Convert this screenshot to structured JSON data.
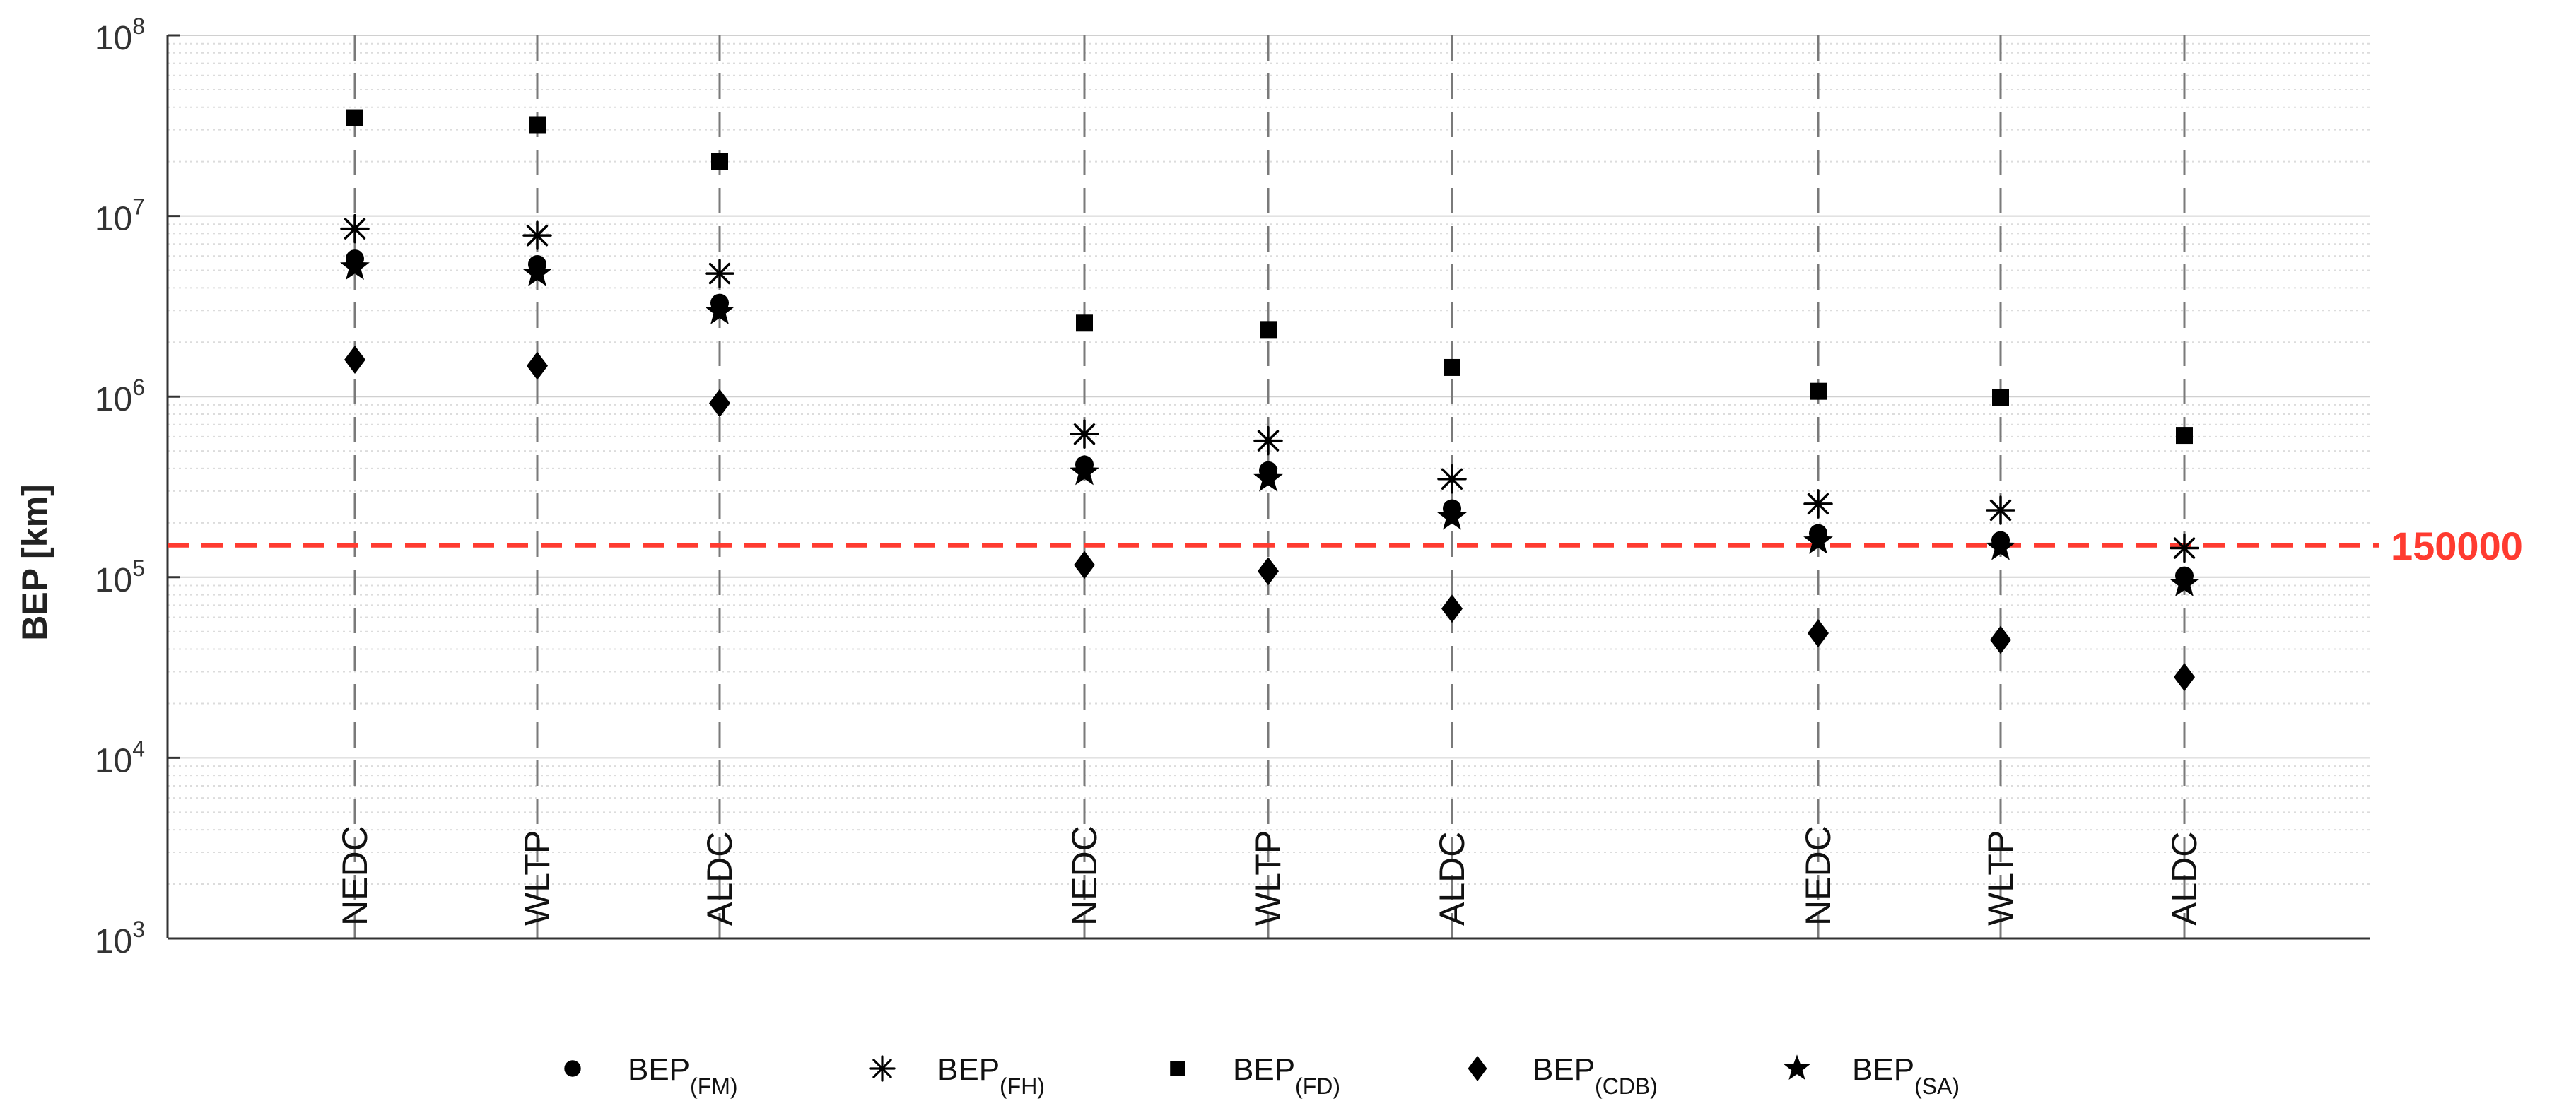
{
  "chart_data": {
    "type": "scatter",
    "y_scale": "log",
    "ylim": [
      1000,
      100000000
    ],
    "ylabel": "BEP [km]",
    "y_ticks": [
      {
        "value": 1000,
        "base": "10",
        "exp": "3"
      },
      {
        "value": 10000,
        "base": "10",
        "exp": "4"
      },
      {
        "value": 100000,
        "base": "10",
        "exp": "5"
      },
      {
        "value": 1000000,
        "base": "10",
        "exp": "6"
      },
      {
        "value": 10000000,
        "base": "10",
        "exp": "7"
      },
      {
        "value": 100000000,
        "base": "10",
        "exp": "8"
      }
    ],
    "grid": true,
    "legend_position": "bottom",
    "categories": [
      "NEDC",
      "WLTP",
      "ALDC",
      "NEDC",
      "WLTP",
      "ALDC",
      "NEDC",
      "WLTP",
      "ALDC"
    ],
    "series": [
      {
        "name": "BEP",
        "subscript": "(FM)",
        "marker": "circle",
        "values": [
          5800000,
          5400000,
          3300000,
          420000,
          390000,
          240000,
          175000,
          160000,
          102000
        ]
      },
      {
        "name": "BEP",
        "subscript": "(FH)",
        "marker": "asterisk",
        "values": [
          8500000,
          7800000,
          4800000,
          620000,
          570000,
          350000,
          255000,
          235000,
          145000
        ]
      },
      {
        "name": "BEP",
        "subscript": "(FD)",
        "marker": "square",
        "values": [
          35000000,
          32000000,
          20000000,
          2550000,
          2350000,
          1450000,
          1070000,
          990000,
          610000
        ]
      },
      {
        "name": "BEP",
        "subscript": "(CDB)",
        "marker": "diamond",
        "values": [
          1600000,
          1480000,
          920000,
          117000,
          108000,
          67000,
          49000,
          45000,
          28000
        ]
      },
      {
        "name": "BEP",
        "subscript": "(SA)",
        "marker": "star",
        "values": [
          5200000,
          4800000,
          2950000,
          380000,
          350000,
          215000,
          158000,
          146000,
          92000
        ]
      }
    ],
    "reference_line": {
      "value": 150000,
      "label": "150000",
      "color": "#ff3b30"
    },
    "colors": {
      "markers": "#000000",
      "grid": "#d0d0d0",
      "axis": "#333333",
      "tick_text": "#333333"
    }
  }
}
